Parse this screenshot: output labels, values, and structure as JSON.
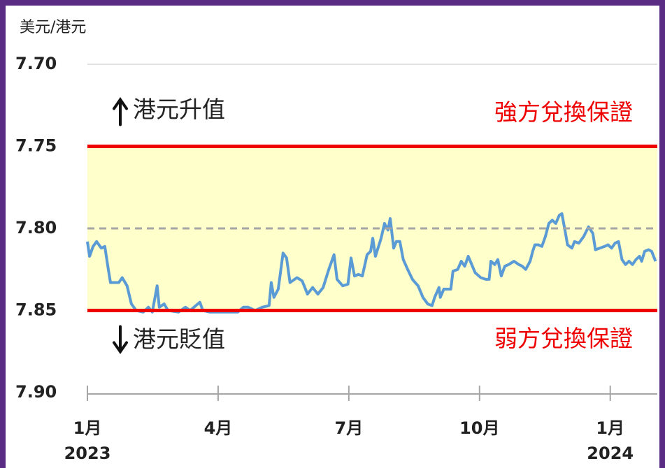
{
  "chart_data": {
    "type": "line",
    "y_axis_label": "美元/港元",
    "y_inverted": true,
    "ylim": [
      7.7,
      7.9
    ],
    "yticks": [
      {
        "value": 7.7,
        "label": "7.70"
      },
      7.75,
      {
        "value": 7.8,
        "label": "7.80"
      },
      7.85,
      {
        "value": 7.9,
        "label": "7.90"
      }
    ],
    "xlim": [
      0,
      13.08
    ],
    "xticks": [
      {
        "value": 0,
        "label": "1月"
      },
      {
        "value": 3,
        "label": "4月"
      },
      {
        "value": 6,
        "label": "7月"
      },
      {
        "value": 9,
        "label": "10月"
      },
      {
        "value": 12,
        "label": "1月"
      }
    ],
    "x_year_labels": [
      {
        "value": 0,
        "label": "2023"
      },
      {
        "value": 12,
        "label": "2024"
      }
    ],
    "band": {
      "range": [
        7.75,
        7.85
      ],
      "color": "#ffffcc"
    },
    "reference_lines": [
      {
        "value": 7.75,
        "label": "強方兌換保證",
        "color": "#ee0000"
      },
      {
        "value": 7.85,
        "label": "弱方兌換保證",
        "color": "#ee0000"
      },
      {
        "value": 7.8,
        "color": "#a6a6a6",
        "dashed": true
      }
    ],
    "annotations": [
      {
        "text": "港元升值",
        "direction": "up"
      },
      {
        "text": "港元貶值",
        "direction": "down"
      }
    ],
    "top_grid_color": "#d9d9d9",
    "series": [
      {
        "color": "#5b9bd5",
        "x": [
          0,
          0.05,
          0.13,
          0.21,
          0.32,
          0.4,
          0.48,
          0.53,
          0.72,
          0.8,
          0.91,
          1.01,
          1.12,
          1.28,
          1.4,
          1.49,
          1.6,
          1.65,
          1.76,
          1.85,
          2.09,
          2.25,
          2.36,
          2.49,
          2.58,
          2.65,
          2.81,
          3.13,
          3.45,
          3.58,
          3.69,
          3.85,
          4.01,
          4.17,
          4.22,
          4.28,
          4.38,
          4.49,
          4.57,
          4.65,
          4.81,
          4.93,
          5.05,
          5.17,
          5.29,
          5.41,
          5.54,
          5.66,
          5.73,
          5.86,
          5.98,
          6.05,
          6.13,
          6.22,
          6.31,
          6.42,
          6.5,
          6.55,
          6.61,
          6.74,
          6.82,
          6.9,
          6.95,
          7.03,
          7.09,
          7.17,
          7.25,
          7.35,
          7.46,
          7.59,
          7.7,
          7.81,
          7.91,
          7.97,
          8.07,
          8.1,
          8.18,
          8.34,
          8.39,
          8.5,
          8.58,
          8.66,
          8.74,
          8.82,
          8.9,
          9.03,
          9.14,
          9.22,
          9.26,
          9.35,
          9.42,
          9.5,
          9.58,
          9.67,
          9.79,
          9.9,
          9.98,
          10.06,
          10.16,
          10.22,
          10.27,
          10.35,
          10.43,
          10.51,
          10.59,
          10.67,
          10.75,
          10.83,
          10.89,
          10.96,
          11.02,
          11.12,
          11.18,
          11.28,
          11.39,
          11.5,
          11.6,
          11.66,
          11.76,
          11.87,
          11.95,
          12.03,
          12.11,
          12.19,
          12.27,
          12.35,
          12.43,
          12.51,
          12.59,
          12.67,
          12.72,
          12.79,
          12.88,
          12.95,
          13.04
        ],
        "values": [
          7.808,
          7.817,
          7.811,
          7.808,
          7.812,
          7.811,
          7.825,
          7.833,
          7.833,
          7.83,
          7.835,
          7.846,
          7.85,
          7.851,
          7.848,
          7.851,
          7.835,
          7.848,
          7.846,
          7.85,
          7.851,
          7.848,
          7.85,
          7.847,
          7.845,
          7.85,
          7.851,
          7.851,
          7.851,
          7.848,
          7.848,
          7.85,
          7.848,
          7.847,
          7.833,
          7.842,
          7.837,
          7.815,
          7.818,
          7.833,
          7.83,
          7.832,
          7.84,
          7.836,
          7.84,
          7.836,
          7.825,
          7.816,
          7.831,
          7.835,
          7.834,
          7.818,
          7.829,
          7.828,
          7.829,
          7.816,
          7.814,
          7.806,
          7.817,
          7.806,
          7.797,
          7.801,
          7.794,
          7.812,
          7.808,
          7.808,
          7.819,
          7.825,
          7.831,
          7.835,
          7.842,
          7.846,
          7.847,
          7.842,
          7.836,
          7.842,
          7.837,
          7.837,
          7.826,
          7.825,
          7.82,
          7.823,
          7.817,
          7.822,
          7.827,
          7.83,
          7.831,
          7.831,
          7.82,
          7.822,
          7.819,
          7.829,
          7.823,
          7.822,
          7.82,
          7.822,
          7.823,
          7.825,
          7.82,
          7.814,
          7.81,
          7.81,
          7.811,
          7.805,
          7.797,
          7.795,
          7.797,
          7.792,
          7.791,
          7.801,
          7.81,
          7.812,
          7.808,
          7.809,
          7.805,
          7.799,
          7.803,
          7.813,
          7.812,
          7.811,
          7.81,
          7.812,
          7.809,
          7.808,
          7.819,
          7.822,
          7.82,
          7.822,
          7.819,
          7.817,
          7.82,
          7.814,
          7.813,
          7.814,
          7.82
        ]
      }
    ]
  }
}
